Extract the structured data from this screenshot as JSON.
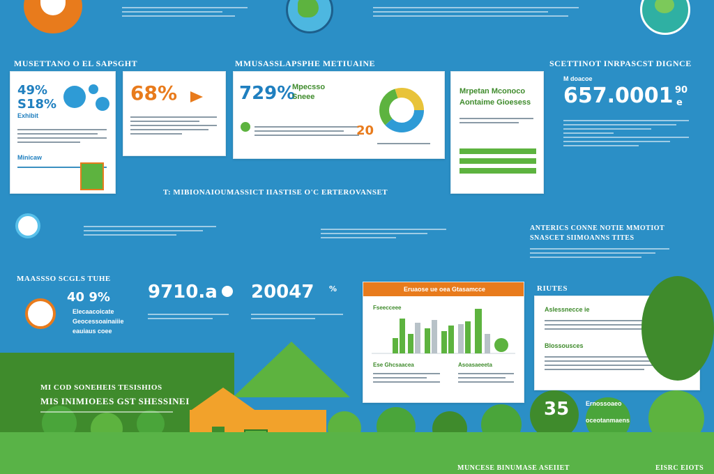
{
  "colors": {
    "background": "#2b8fc6",
    "green": "#5db33f",
    "orange": "#e87b1c",
    "white": "#ffffff",
    "dark_green": "#3f8b2c"
  },
  "section_left_title": "MUSETTANO O EL SAPSGHT",
  "section_mid_title": "MMUSASSLAPSPHE METIUAINE",
  "section_right_title": "SCETTINOT INRPASCST DIGNCE",
  "card1": {
    "pct_a": "49%",
    "pct_b": "S18%",
    "tag": "Exhibit",
    "sub": "Minicaw"
  },
  "card2": {
    "pct": "68%"
  },
  "card3": {
    "pct": "729%",
    "title_a": "Mpecsso",
    "title_b": "Sneee",
    "number": "20"
  },
  "card4": {
    "title_a": "Mrpetan Mconoco",
    "title_b": "Aontaime Gioesess"
  },
  "right_stat": {
    "value": "657.0001",
    "suffix_a": "90",
    "suffix_b": "e",
    "label": "M doacoe"
  },
  "center_heading": "T: MIBIONAIOUMASSICT IIASTISE O'C ERTEROVANSET",
  "mid_right_heading": {
    "line1": "ANTERICS CONNE NOTIE MMOTIOT",
    "line2": "SNASCET SIIMOANNS TITES"
  },
  "stats_row": {
    "left_title": "MAASSSO SCGLS TUHE",
    "left_pct": "40 9%",
    "left_lines": [
      "Elecaacoicate",
      "Geocessoainaiiie",
      "eauiaus coee"
    ],
    "num1": "9710.a",
    "num1_suffix": "o",
    "num2": "20047",
    "num2_suffix": "%"
  },
  "chart_card": {
    "title": "Eruaose ue oea Gtasamcce",
    "label_a": "Fseecceee",
    "label_b": "Ese Ghcsaacea",
    "label_c": "Asoasaeeeta"
  },
  "notes_card": {
    "heading": "RIUTES",
    "title": "Aslessnecce ie",
    "sub": "Blossousces"
  },
  "bottom_left": {
    "line1": "MI COD SONEHEIS TESISHIOS",
    "line2": "MIS INIMIOEES GST SHESSINEI"
  },
  "bottom_stat": {
    "value": "35",
    "label_a": "Ernossoaeo",
    "label_b": "oceotanmaens"
  },
  "footer_center": "MUNCESE BINUMASE ASEIIET",
  "footer_right": "eisrc eiots"
}
